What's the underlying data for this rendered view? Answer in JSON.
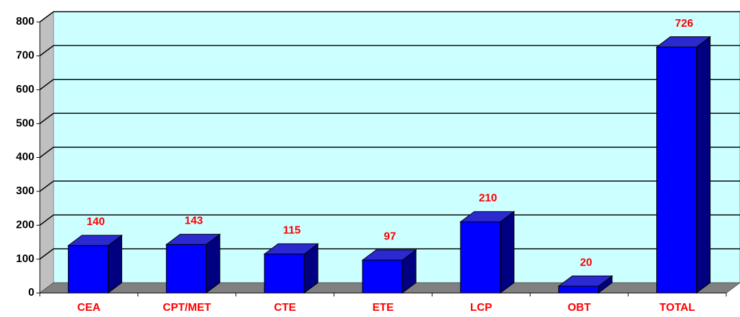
{
  "chart_data": {
    "type": "bar",
    "categories": [
      "CEA",
      "CPT/MET",
      "CTE",
      "ETE",
      "LCP",
      "OBT",
      "TOTAL"
    ],
    "values": [
      140,
      143,
      115,
      97,
      210,
      20,
      726
    ],
    "color": "#0000ff",
    "ylim": [
      0,
      800
    ],
    "yticks": [
      0,
      100,
      200,
      300,
      400,
      500,
      600,
      700,
      800
    ],
    "grid": true
  }
}
